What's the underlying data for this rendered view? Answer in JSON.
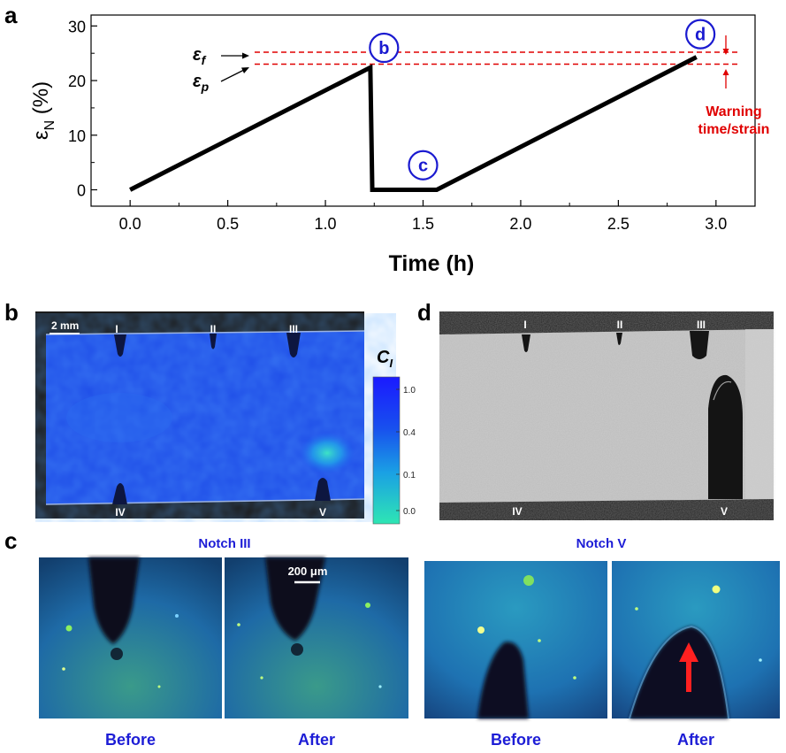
{
  "panel_labels": {
    "a": "a",
    "b": "b",
    "c": "c",
    "d": "d"
  },
  "chart_data": {
    "type": "line",
    "xlabel": "Time (h)",
    "ylabel": "ε",
    "ylabel_sub": "N",
    "ylabel_unit": " (%)",
    "xlim": [
      -0.2,
      3.2
    ],
    "ylim": [
      -3,
      32
    ],
    "xticks": [
      "0.0",
      "0.5",
      "1.0",
      "1.5",
      "2.0",
      "2.5",
      "3.0"
    ],
    "xtick_values": [
      0,
      0.5,
      1.0,
      1.5,
      2.0,
      2.5,
      3.0
    ],
    "yticks": [
      "0",
      "10",
      "20",
      "30"
    ],
    "ytick_values": [
      0,
      10,
      20,
      30
    ],
    "series": [
      {
        "x": [
          0,
          1.23,
          1.24,
          1.57,
          2.9
        ],
        "y": [
          0,
          22.4,
          0,
          0,
          24.3
        ],
        "color": "#000000"
      }
    ],
    "threshold_lines": [
      {
        "label_main": "ε",
        "label_sub": "f",
        "y": 25.2,
        "color": "#e00000"
      },
      {
        "label_main": "ε",
        "label_sub": "p",
        "y": 23.0,
        "color": "#e00000"
      }
    ],
    "markers": [
      {
        "label": "b",
        "x": 1.3,
        "y": 26.0,
        "color": "#1a1ad0"
      },
      {
        "label": "c",
        "x": 1.5,
        "y": 4.5,
        "color": "#1a1ad0"
      },
      {
        "label": "d",
        "x": 2.92,
        "y": 28.5,
        "color": "#1a1ad0"
      }
    ],
    "annotation": {
      "line1": "Warning",
      "line2": "time/strain",
      "color": "#e00000"
    }
  },
  "panel_b": {
    "scalebar": "2 mm",
    "notches_top": [
      "I",
      "II",
      "III"
    ],
    "notches_bottom": [
      "IV",
      "V"
    ],
    "colorbar_title": "C",
    "colorbar_sub": "I",
    "colorbar_ticks": [
      "1.00",
      "0.43",
      "0.18",
      "0.08"
    ]
  },
  "panel_d": {
    "notches_top": [
      "I",
      "II",
      "III"
    ],
    "notches_bottom": [
      "IV",
      "V"
    ]
  },
  "panel_c": {
    "notch3_title": "Notch III",
    "notch5_title": "Notch V",
    "scalebar": "200 μm",
    "captions": [
      "Before",
      "After",
      "Before",
      "After"
    ],
    "colors": {
      "caption": "#1d1dd6",
      "arrow": "#ff2020"
    }
  }
}
